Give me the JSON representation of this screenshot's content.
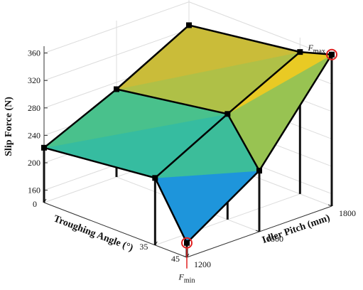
{
  "chart_data": {
    "type": "surface3d",
    "xlabel": "Troughing Angle (°)",
    "ylabel": "Idler Pitch (mm)",
    "zlabel": "Slip Force (N)",
    "x": [
      0,
      35,
      45
    ],
    "y": [
      1200,
      1500,
      1800
    ],
    "z": [
      [
        222,
        270,
        326
      ],
      [
        240,
        296,
        349
      ],
      [
        163,
        231,
        363
      ]
    ],
    "xlim": [
      0,
      45
    ],
    "ylim": [
      1200,
      1800
    ],
    "zlim": [
      142,
      370
    ],
    "xticks": [
      0,
      35,
      45
    ],
    "yticks": [
      1200,
      1500,
      1800
    ],
    "zticks": [
      160,
      200,
      240,
      280,
      320,
      360
    ],
    "grid": true,
    "annotations": {
      "max": {
        "symbol": "F",
        "subscript": "max"
      },
      "min": {
        "symbol": "F",
        "subscript": "min"
      }
    }
  }
}
